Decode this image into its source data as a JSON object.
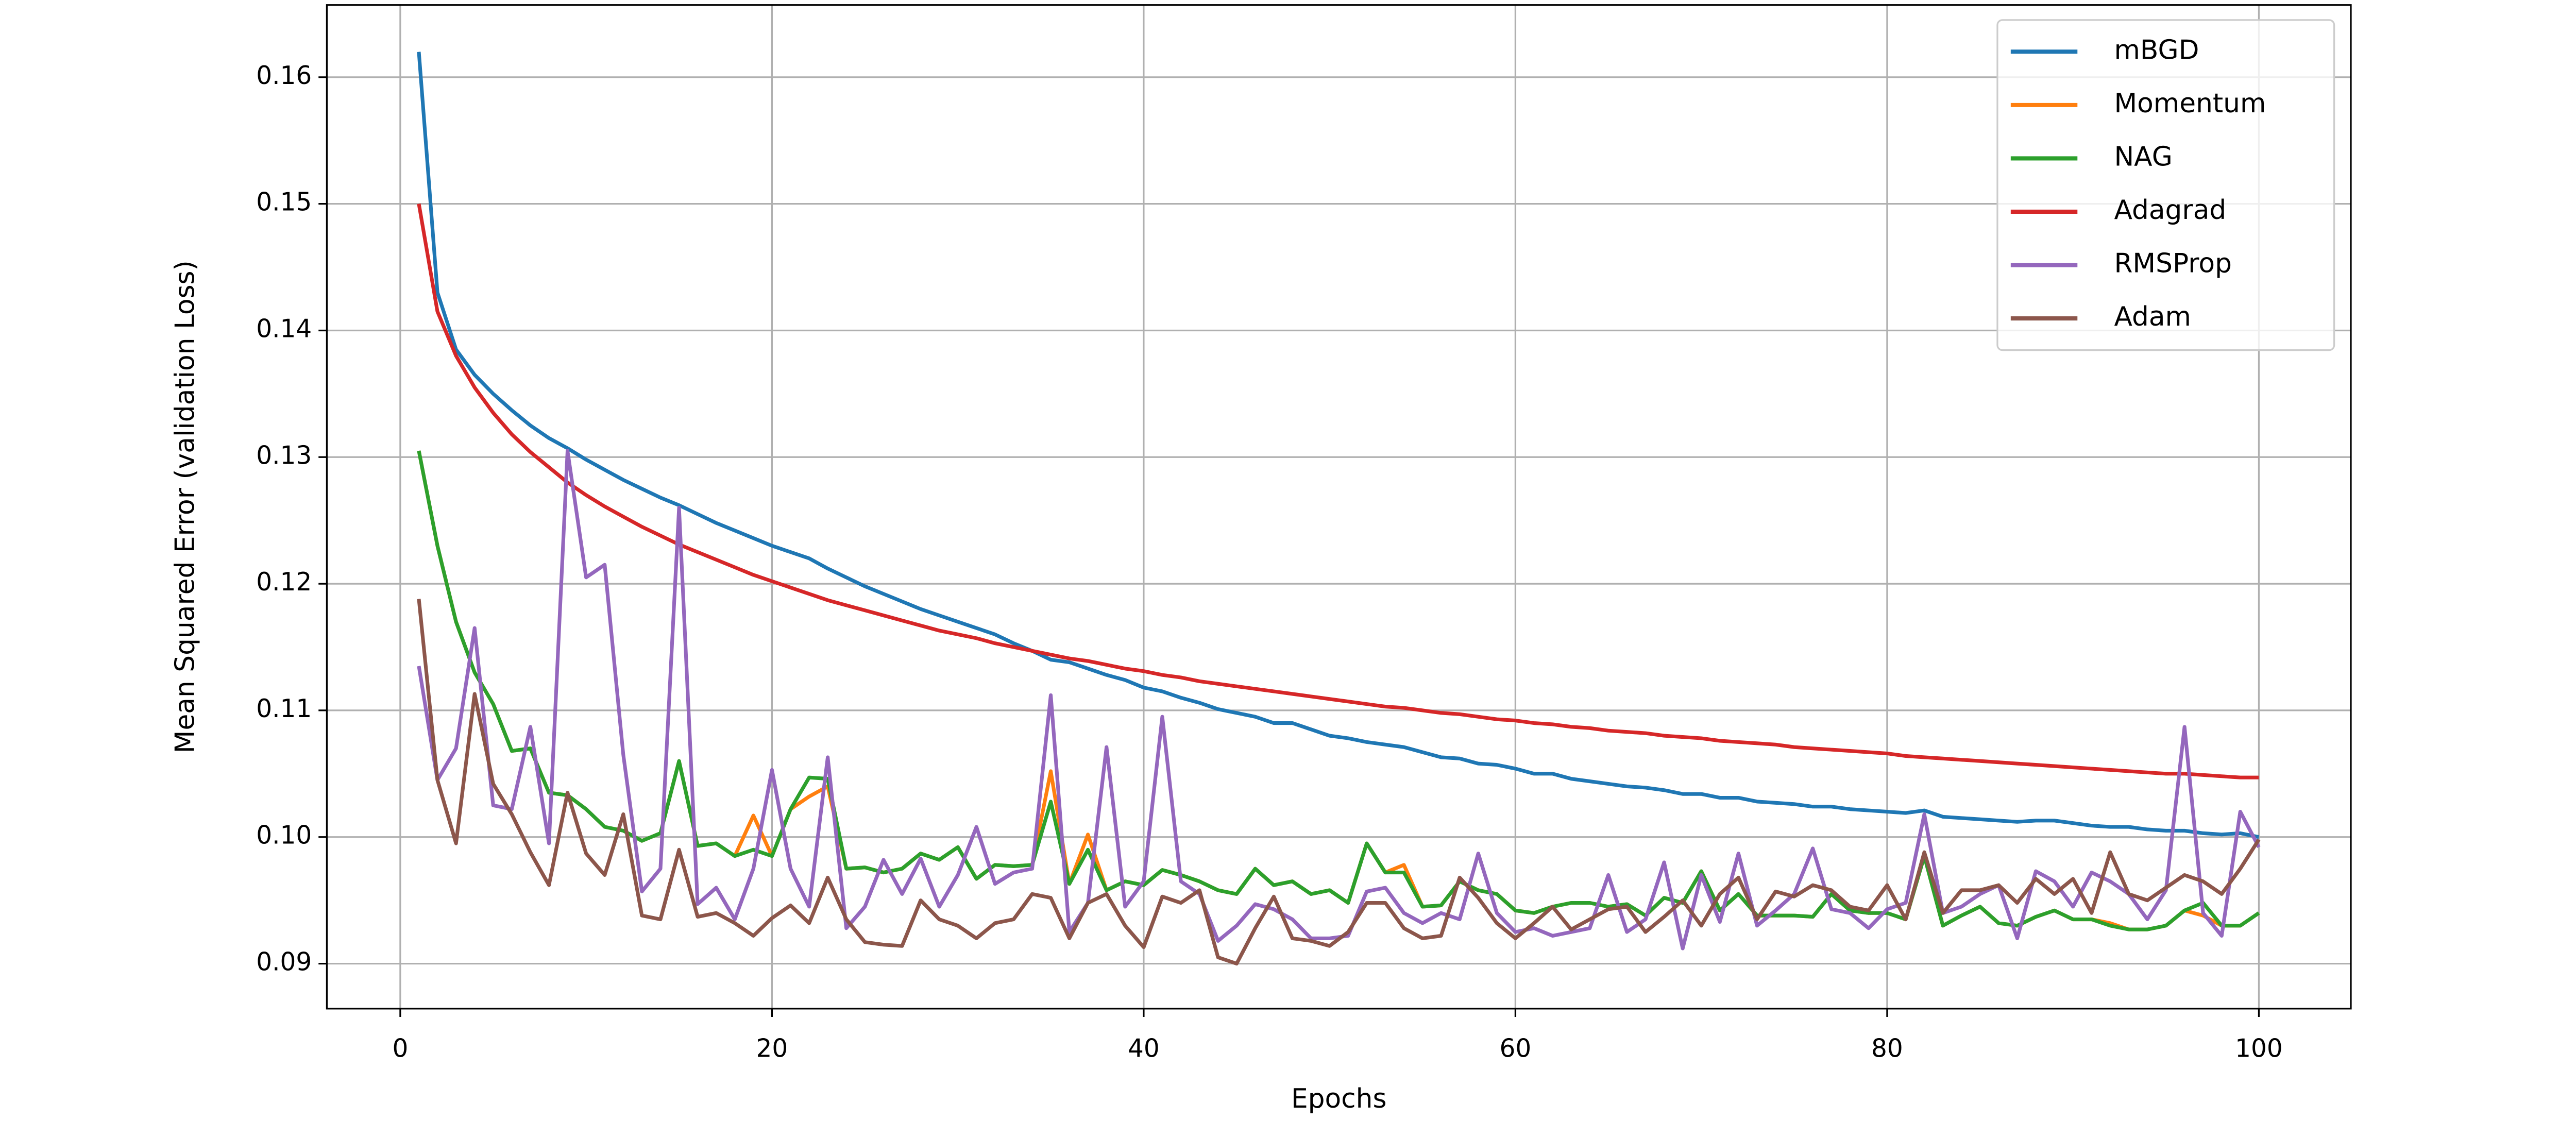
{
  "chart_data": {
    "type": "line",
    "x_label": "Epochs",
    "y_label": "Mean Squared Error (validation Loss)",
    "x": [
      1,
      2,
      3,
      4,
      5,
      6,
      7,
      8,
      9,
      10,
      11,
      12,
      13,
      14,
      15,
      16,
      17,
      18,
      19,
      20,
      21,
      22,
      23,
      24,
      25,
      26,
      27,
      28,
      29,
      30,
      31,
      32,
      33,
      34,
      35,
      36,
      37,
      38,
      39,
      40,
      41,
      42,
      43,
      44,
      45,
      46,
      47,
      48,
      49,
      50,
      51,
      52,
      53,
      54,
      55,
      56,
      57,
      58,
      59,
      60,
      61,
      62,
      63,
      64,
      65,
      66,
      67,
      68,
      69,
      70,
      71,
      72,
      73,
      74,
      75,
      76,
      77,
      78,
      79,
      80,
      81,
      82,
      83,
      84,
      85,
      86,
      87,
      88,
      89,
      90,
      91,
      92,
      93,
      94,
      95,
      96,
      97,
      98,
      99,
      100
    ],
    "xlim": [
      -3.95,
      104.95
    ],
    "xticks": [
      0,
      20,
      40,
      60,
      80,
      100
    ],
    "ylim": [
      0.08645,
      0.1657
    ],
    "yticks": [
      0.09,
      {
        "value": 0.1,
        "label": "0.10"
      },
      0.11,
      0.12,
      0.13,
      0.14,
      0.15,
      0.16
    ],
    "grid": true,
    "legend": "upper right",
    "series": [
      {
        "name": "mBGD",
        "color": "#1f77b4",
        "values": [
          0.162,
          0.143,
          0.1385,
          0.1365,
          0.135,
          0.1337,
          0.1325,
          0.1315,
          0.1307,
          0.1298,
          0.129,
          0.1282,
          0.1275,
          0.1268,
          0.1262,
          0.1255,
          0.1248,
          0.1242,
          0.1236,
          0.123,
          0.1225,
          0.122,
          0.1212,
          0.1205,
          0.1198,
          0.1192,
          0.1186,
          0.118,
          0.1175,
          0.117,
          0.1165,
          0.116,
          0.1153,
          0.1147,
          0.114,
          0.1138,
          0.1133,
          0.1128,
          0.1124,
          0.1118,
          0.1115,
          0.111,
          0.1106,
          0.1101,
          0.1098,
          0.1095,
          0.109,
          0.109,
          0.1085,
          0.108,
          0.1078,
          0.1075,
          0.1073,
          0.1071,
          0.1067,
          0.1063,
          0.1062,
          0.1058,
          0.1057,
          0.1054,
          0.105,
          0.105,
          0.1046,
          0.1044,
          0.1042,
          0.104,
          0.1039,
          0.1037,
          0.1034,
          0.1034,
          0.1031,
          0.1031,
          0.1028,
          0.1027,
          0.1026,
          0.1024,
          0.1024,
          0.1022,
          0.1021,
          0.102,
          0.1019,
          0.1021,
          0.1016,
          0.1015,
          0.1014,
          0.1013,
          0.1012,
          0.1013,
          0.1013,
          0.1011,
          0.1009,
          0.1008,
          0.1008,
          0.1006,
          0.1005,
          0.1005,
          0.1003,
          0.1002,
          0.1003,
          0.1
        ]
      },
      {
        "name": "Momentum",
        "color": "#ff7f0e",
        "values": [
          0.1305,
          0.123,
          0.117,
          0.113,
          0.1105,
          0.1068,
          0.107,
          0.1035,
          0.1033,
          0.1022,
          0.1008,
          0.1005,
          0.0997,
          0.1003,
          0.106,
          0.0993,
          0.0995,
          0.0985,
          0.1017,
          0.0985,
          0.1022,
          0.1032,
          0.104,
          0.0975,
          0.0976,
          0.0972,
          0.0975,
          0.0987,
          0.0982,
          0.0992,
          0.0967,
          0.0978,
          0.0977,
          0.0978,
          0.1052,
          0.0963,
          0.1002,
          0.0958,
          0.0965,
          0.0962,
          0.0974,
          0.097,
          0.0965,
          0.0958,
          0.0955,
          0.0975,
          0.0962,
          0.0965,
          0.0955,
          0.0958,
          0.0948,
          0.0995,
          0.0972,
          0.0978,
          0.0945,
          0.0946,
          0.0965,
          0.0958,
          0.0955,
          0.0942,
          0.094,
          0.0945,
          0.0948,
          0.0948,
          0.0945,
          0.0947,
          0.0938,
          0.0952,
          0.0948,
          0.0973,
          0.0942,
          0.0955,
          0.0938,
          0.0938,
          0.0938,
          0.0937,
          0.0955,
          0.0942,
          0.094,
          0.094,
          0.0935,
          0.0985,
          0.093,
          0.0938,
          0.0945,
          0.0932,
          0.093,
          0.0937,
          0.0942,
          0.0935,
          0.0935,
          0.0932,
          0.0927,
          0.0927,
          0.093,
          0.0942,
          0.0938,
          0.093,
          0.093,
          0.094
        ]
      },
      {
        "name": "NAG",
        "color": "#2ca02c",
        "values": [
          0.1305,
          0.123,
          0.117,
          0.113,
          0.1105,
          0.1068,
          0.107,
          0.1035,
          0.1033,
          0.1022,
          0.1008,
          0.1005,
          0.0997,
          0.1003,
          0.106,
          0.0993,
          0.0995,
          0.0985,
          0.099,
          0.0985,
          0.1022,
          0.1047,
          0.1046,
          0.0975,
          0.0976,
          0.0972,
          0.0975,
          0.0987,
          0.0982,
          0.0992,
          0.0967,
          0.0978,
          0.0977,
          0.0978,
          0.1028,
          0.0963,
          0.099,
          0.0958,
          0.0965,
          0.0962,
          0.0974,
          0.097,
          0.0965,
          0.0958,
          0.0955,
          0.0975,
          0.0962,
          0.0965,
          0.0955,
          0.0958,
          0.0948,
          0.0995,
          0.0972,
          0.0972,
          0.0945,
          0.0946,
          0.0965,
          0.0958,
          0.0955,
          0.0942,
          0.094,
          0.0945,
          0.0948,
          0.0948,
          0.0945,
          0.0947,
          0.0938,
          0.0952,
          0.0948,
          0.0973,
          0.0942,
          0.0955,
          0.0938,
          0.0938,
          0.0938,
          0.0937,
          0.0955,
          0.0942,
          0.094,
          0.094,
          0.0935,
          0.0985,
          0.093,
          0.0938,
          0.0945,
          0.0932,
          0.093,
          0.0937,
          0.0942,
          0.0935,
          0.0935,
          0.093,
          0.0927,
          0.0927,
          0.093,
          0.0942,
          0.0948,
          0.093,
          0.093,
          0.094
        ]
      },
      {
        "name": "Adagrad",
        "color": "#d62728",
        "values": [
          0.15,
          0.1415,
          0.138,
          0.1355,
          0.1335,
          0.1318,
          0.1304,
          0.1292,
          0.128,
          0.127,
          0.1261,
          0.1253,
          0.1245,
          0.1238,
          0.1231,
          0.1225,
          0.1219,
          0.1213,
          0.1207,
          0.1202,
          0.1197,
          0.1192,
          0.1187,
          0.1183,
          0.1179,
          0.1175,
          0.1171,
          0.1167,
          0.1163,
          0.116,
          0.1157,
          0.1153,
          0.115,
          0.1147,
          0.1144,
          0.1141,
          0.1139,
          0.1136,
          0.1133,
          0.1131,
          0.1128,
          0.1126,
          0.1123,
          0.1121,
          0.1119,
          0.1117,
          0.1115,
          0.1113,
          0.1111,
          0.1109,
          0.1107,
          0.1105,
          0.1103,
          0.1102,
          0.11,
          0.1098,
          0.1097,
          0.1095,
          0.1093,
          0.1092,
          0.109,
          0.1089,
          0.1087,
          0.1086,
          0.1084,
          0.1083,
          0.1082,
          0.108,
          0.1079,
          0.1078,
          0.1076,
          0.1075,
          0.1074,
          0.1073,
          0.1071,
          0.107,
          0.1069,
          0.1068,
          0.1067,
          0.1066,
          0.1064,
          0.1063,
          0.1062,
          0.1061,
          0.106,
          0.1059,
          0.1058,
          0.1057,
          0.1056,
          0.1055,
          0.1054,
          0.1053,
          0.1052,
          0.1051,
          0.105,
          0.105,
          0.1049,
          0.1048,
          0.1047,
          0.1047
        ]
      },
      {
        "name": "RMSProp",
        "color": "#9467bd",
        "values": [
          0.1135,
          0.1045,
          0.107,
          0.1165,
          0.1025,
          0.1022,
          0.1087,
          0.0995,
          0.1305,
          0.1205,
          0.1215,
          0.1065,
          0.0957,
          0.0975,
          0.126,
          0.0947,
          0.096,
          0.0935,
          0.0975,
          0.1053,
          0.0975,
          0.0945,
          0.1063,
          0.0928,
          0.0945,
          0.0982,
          0.0955,
          0.0983,
          0.0945,
          0.097,
          0.1008,
          0.0963,
          0.0972,
          0.0975,
          0.1112,
          0.0925,
          0.0948,
          0.1071,
          0.0945,
          0.0965,
          0.1095,
          0.0965,
          0.0955,
          0.0918,
          0.093,
          0.0947,
          0.0943,
          0.0935,
          0.092,
          0.092,
          0.0922,
          0.0957,
          0.096,
          0.094,
          0.0932,
          0.094,
          0.0935,
          0.0987,
          0.094,
          0.0925,
          0.0928,
          0.0922,
          0.0925,
          0.0928,
          0.097,
          0.0925,
          0.0935,
          0.098,
          0.0912,
          0.097,
          0.0933,
          0.0987,
          0.093,
          0.0942,
          0.0955,
          0.0991,
          0.0943,
          0.094,
          0.0928,
          0.0943,
          0.0948,
          0.1018,
          0.094,
          0.0945,
          0.0955,
          0.0962,
          0.092,
          0.0973,
          0.0965,
          0.0945,
          0.0972,
          0.0965,
          0.0955,
          0.0935,
          0.0958,
          0.1087,
          0.094,
          0.0922,
          0.102,
          0.0992
        ]
      },
      {
        "name": "Adam",
        "color": "#8c564b",
        "values": [
          0.1188,
          0.1045,
          0.0995,
          0.1113,
          0.1042,
          0.1018,
          0.0988,
          0.0962,
          0.1035,
          0.0987,
          0.097,
          0.1018,
          0.0938,
          0.0935,
          0.099,
          0.0937,
          0.094,
          0.0932,
          0.0922,
          0.0936,
          0.0946,
          0.0932,
          0.0968,
          0.0935,
          0.0917,
          0.0915,
          0.0914,
          0.095,
          0.0935,
          0.093,
          0.092,
          0.0932,
          0.0935,
          0.0955,
          0.0952,
          0.092,
          0.0948,
          0.0955,
          0.093,
          0.0913,
          0.0953,
          0.0948,
          0.0958,
          0.0905,
          0.09,
          0.0928,
          0.0953,
          0.092,
          0.0918,
          0.0914,
          0.0925,
          0.0948,
          0.0948,
          0.0928,
          0.092,
          0.0922,
          0.0968,
          0.0952,
          0.0932,
          0.092,
          0.0932,
          0.0945,
          0.0927,
          0.0935,
          0.0943,
          0.0945,
          0.0925,
          0.0937,
          0.095,
          0.093,
          0.0955,
          0.0968,
          0.0935,
          0.0957,
          0.0953,
          0.0962,
          0.0958,
          0.0945,
          0.0942,
          0.0962,
          0.0935,
          0.0988,
          0.094,
          0.0958,
          0.0958,
          0.0962,
          0.0948,
          0.0967,
          0.0955,
          0.0967,
          0.094,
          0.0988,
          0.0955,
          0.095,
          0.096,
          0.097,
          0.0965,
          0.0955,
          0.0975,
          0.0998
        ]
      }
    ]
  }
}
